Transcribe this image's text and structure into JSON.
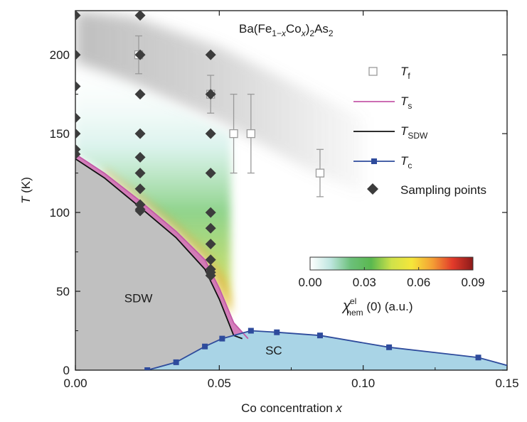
{
  "chart_data": {
    "type": "scatter",
    "title": "Ba(Fe1−xCox)2As2",
    "title_parts": {
      "base": "Ba(Fe",
      "s1": "1−",
      "x1": "x",
      "mid": "Co",
      "x2": "x",
      "close": ")",
      "s2": "2",
      "tail": "As",
      "s3": "2"
    },
    "xlabel": {
      "text": "Co concentration ",
      "var": "x"
    },
    "ylabel": {
      "var": "T",
      "unit": " (K)"
    },
    "xlim": [
      0,
      0.15
    ],
    "ylim": [
      0,
      228
    ],
    "x_ticks": [
      0,
      0.05,
      0.1,
      0.15
    ],
    "x_tick_labels": [
      "0.00",
      "0.05",
      "0.10",
      "0.15"
    ],
    "y_ticks": [
      0,
      50,
      100,
      150,
      200
    ],
    "y_tick_labels": [
      "0",
      "50",
      "100",
      "150",
      "200"
    ],
    "regions": [
      {
        "label": "SDW",
        "x": 0.017,
        "y": 43,
        "fill": "#c0c0c0"
      },
      {
        "label": "SC",
        "x": 0.066,
        "y": 10,
        "fill": "#a9d4e6"
      }
    ],
    "series": [
      {
        "name_var": "T",
        "name_sub": "f",
        "kind": "open-square",
        "x": [
          0.022,
          0.047,
          0.055,
          0.061,
          0.085
        ],
        "y": [
          200,
          175,
          150,
          150,
          125
        ],
        "yerr": [
          12,
          12,
          25,
          25,
          15
        ]
      },
      {
        "name_var": "T",
        "name_sub": "s",
        "kind": "line",
        "color": "#c45aa8",
        "x": [
          0.0,
          0.01,
          0.022,
          0.035,
          0.045,
          0.05,
          0.055,
          0.06
        ],
        "y": [
          137,
          125,
          108,
          88,
          70,
          52,
          30,
          20
        ]
      },
      {
        "name_var": "T",
        "name_sub": "SDW",
        "kind": "line",
        "color": "#111111",
        "x": [
          0.0,
          0.01,
          0.022,
          0.035,
          0.045,
          0.05,
          0.055,
          0.058
        ],
        "y": [
          134,
          122,
          104,
          84,
          64,
          45,
          22,
          20
        ]
      },
      {
        "name_var": "T",
        "name_sub": "c",
        "kind": "line-square",
        "color": "#2e4b9c",
        "x": [
          0.025,
          0.035,
          0.045,
          0.051,
          0.061,
          0.07,
          0.085,
          0.109,
          0.14
        ],
        "y": [
          0,
          5,
          15,
          20,
          25,
          24,
          22,
          14.5,
          8
        ]
      },
      {
        "name": "Sampling points",
        "kind": "diamond",
        "color": "#3c3c3c",
        "x": [
          0,
          0,
          0,
          0,
          0,
          0,
          0,
          0.0225,
          0.0225,
          0.0225,
          0.0225,
          0.0225,
          0.0225,
          0.0225,
          0.0225,
          0.0225,
          0.0225,
          0.047,
          0.047,
          0.047,
          0.047,
          0.047,
          0.047,
          0.047,
          0.047,
          0.047,
          0.047,
          0.047
        ],
        "y": [
          225,
          200,
          180,
          160,
          150,
          140,
          137,
          225,
          200,
          175,
          150,
          135,
          125,
          115,
          105,
          102,
          101,
          200,
          175,
          150,
          125,
          100,
          90,
          80,
          70,
          64,
          62,
          60
        ]
      }
    ],
    "colorbar": {
      "label_var": "χ",
      "label_sub": "nem",
      "label_sup": "el",
      "label_tail": " (0) (a.u.)",
      "ticks": [
        0.0,
        0.03,
        0.06,
        0.09
      ],
      "tick_labels": [
        "0.00",
        "0.03",
        "0.06",
        "0.09"
      ],
      "range": [
        0,
        0.09
      ],
      "colors": [
        "#ffffff",
        "#bfe6e0",
        "#6cc07a",
        "#5ab84f",
        "#cfe24a",
        "#f5e63a",
        "#f4a035",
        "#e23a2a",
        "#8b1a1a"
      ]
    },
    "grid": false,
    "legend_position": "right"
  }
}
